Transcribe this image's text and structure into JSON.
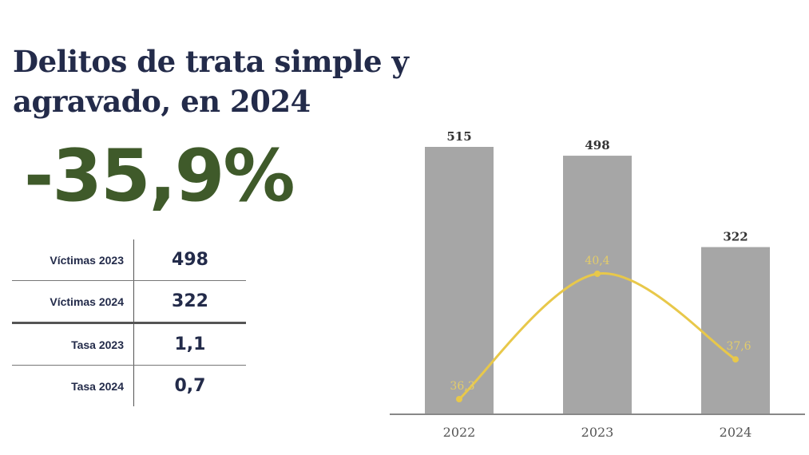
{
  "title": "Delitos de trata simple y agravado, en 2024",
  "headline_change": "-35,9%",
  "summary_table": [
    {
      "label": "Víctimas 2023",
      "value": "498"
    },
    {
      "label": "Víctimas 2024",
      "value": "322"
    },
    {
      "label": "Tasa 2023",
      "value": "1,1"
    },
    {
      "label": "Tasa 2024",
      "value": "0,7"
    }
  ],
  "chart_data": {
    "type": "bar",
    "categories": [
      "2022",
      "2023",
      "2024"
    ],
    "series": [
      {
        "type": "bar",
        "values": [
          515,
          498,
          322
        ],
        "labels": [
          "515",
          "498",
          "322"
        ],
        "color": "#a6a6a6"
      },
      {
        "type": "line",
        "values": [
          36.3,
          40.4,
          37.6
        ],
        "labels": [
          "36,3",
          "40,4",
          "37,6"
        ],
        "color": "#e8c84a",
        "smooth": true
      }
    ],
    "grid": false,
    "legend": "none"
  }
}
